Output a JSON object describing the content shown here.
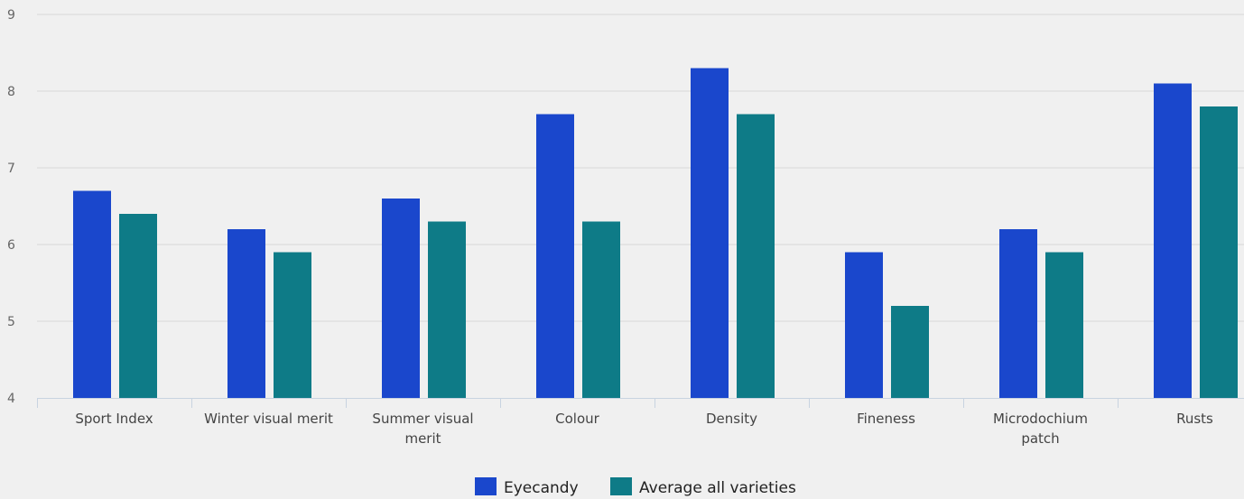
{
  "chart_data": {
    "type": "bar",
    "title": "",
    "xlabel": "",
    "ylabel": "",
    "ylim": [
      4,
      9
    ],
    "yticks": [
      4,
      5,
      6,
      7,
      8,
      9
    ],
    "grid": true,
    "legend_position": "bottom-center",
    "categories": [
      [
        "Sport Index"
      ],
      [
        "Winter visual merit"
      ],
      [
        "Summer visual",
        "merit"
      ],
      [
        "Colour"
      ],
      [
        "Density"
      ],
      [
        "Fineness"
      ],
      [
        "Microdochium",
        "patch"
      ],
      [
        "Rusts"
      ]
    ],
    "series": [
      {
        "name": "Eyecandy",
        "color": "#1a47cc",
        "values": [
          6.7,
          6.2,
          6.6,
          7.7,
          8.3,
          5.9,
          6.2,
          8.1
        ]
      },
      {
        "name": "Average all varieties",
        "color": "#0e7b87",
        "values": [
          6.4,
          5.9,
          6.3,
          6.3,
          7.7,
          5.2,
          5.9,
          7.8
        ]
      }
    ]
  }
}
